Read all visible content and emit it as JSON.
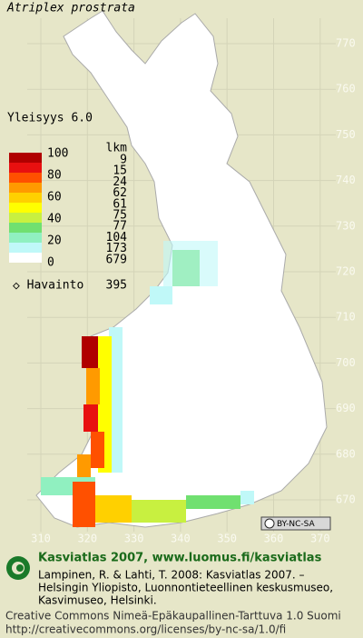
{
  "header": {
    "title": "Atriplex prostrata",
    "frequency": "Yleisyys  6.0"
  },
  "legend": {
    "scale_labels": [
      "100",
      "80",
      "60",
      "40",
      "20",
      "0"
    ],
    "colors": [
      "#b00000",
      "#e81010",
      "#ff5000",
      "#ff9a00",
      "#ffd000",
      "#ffff00",
      "#c8f040",
      "#70e070",
      "#90f0c0",
      "#c0f8f8",
      "#ffffff"
    ],
    "count_header": "lkm",
    "counts": [
      "9",
      "15",
      "24",
      "62",
      "61",
      "75",
      "77",
      "104",
      "173",
      "679"
    ],
    "observation_label": "Havainto",
    "observation_count": "395"
  },
  "grid": {
    "y_labels": [
      "770",
      "760",
      "750",
      "740",
      "730",
      "720",
      "710",
      "700",
      "690",
      "680",
      "670"
    ],
    "x_labels": [
      "310",
      "320",
      "330",
      "340",
      "350",
      "360",
      "370"
    ]
  },
  "badge": "BY-NC-SA",
  "footer": {
    "site": "Kasviatlas 2007, www.luomus.fi/kasviatlas",
    "citation": [
      "Lampinen, R. & Lahti, T. 2008: Kasviatlas 2007. –",
      "Helsingin Yliopisto, Luonnontieteellinen keskusmuseo,",
      "Kasvimuseo, Helsinki."
    ],
    "license": [
      "Creative Commons Nimeä-Epäkaupallinen-Tarttuva 1.0 Suomi",
      "http://creativecommons.org/licenses/by-nc-sa/1.0/fi"
    ]
  }
}
